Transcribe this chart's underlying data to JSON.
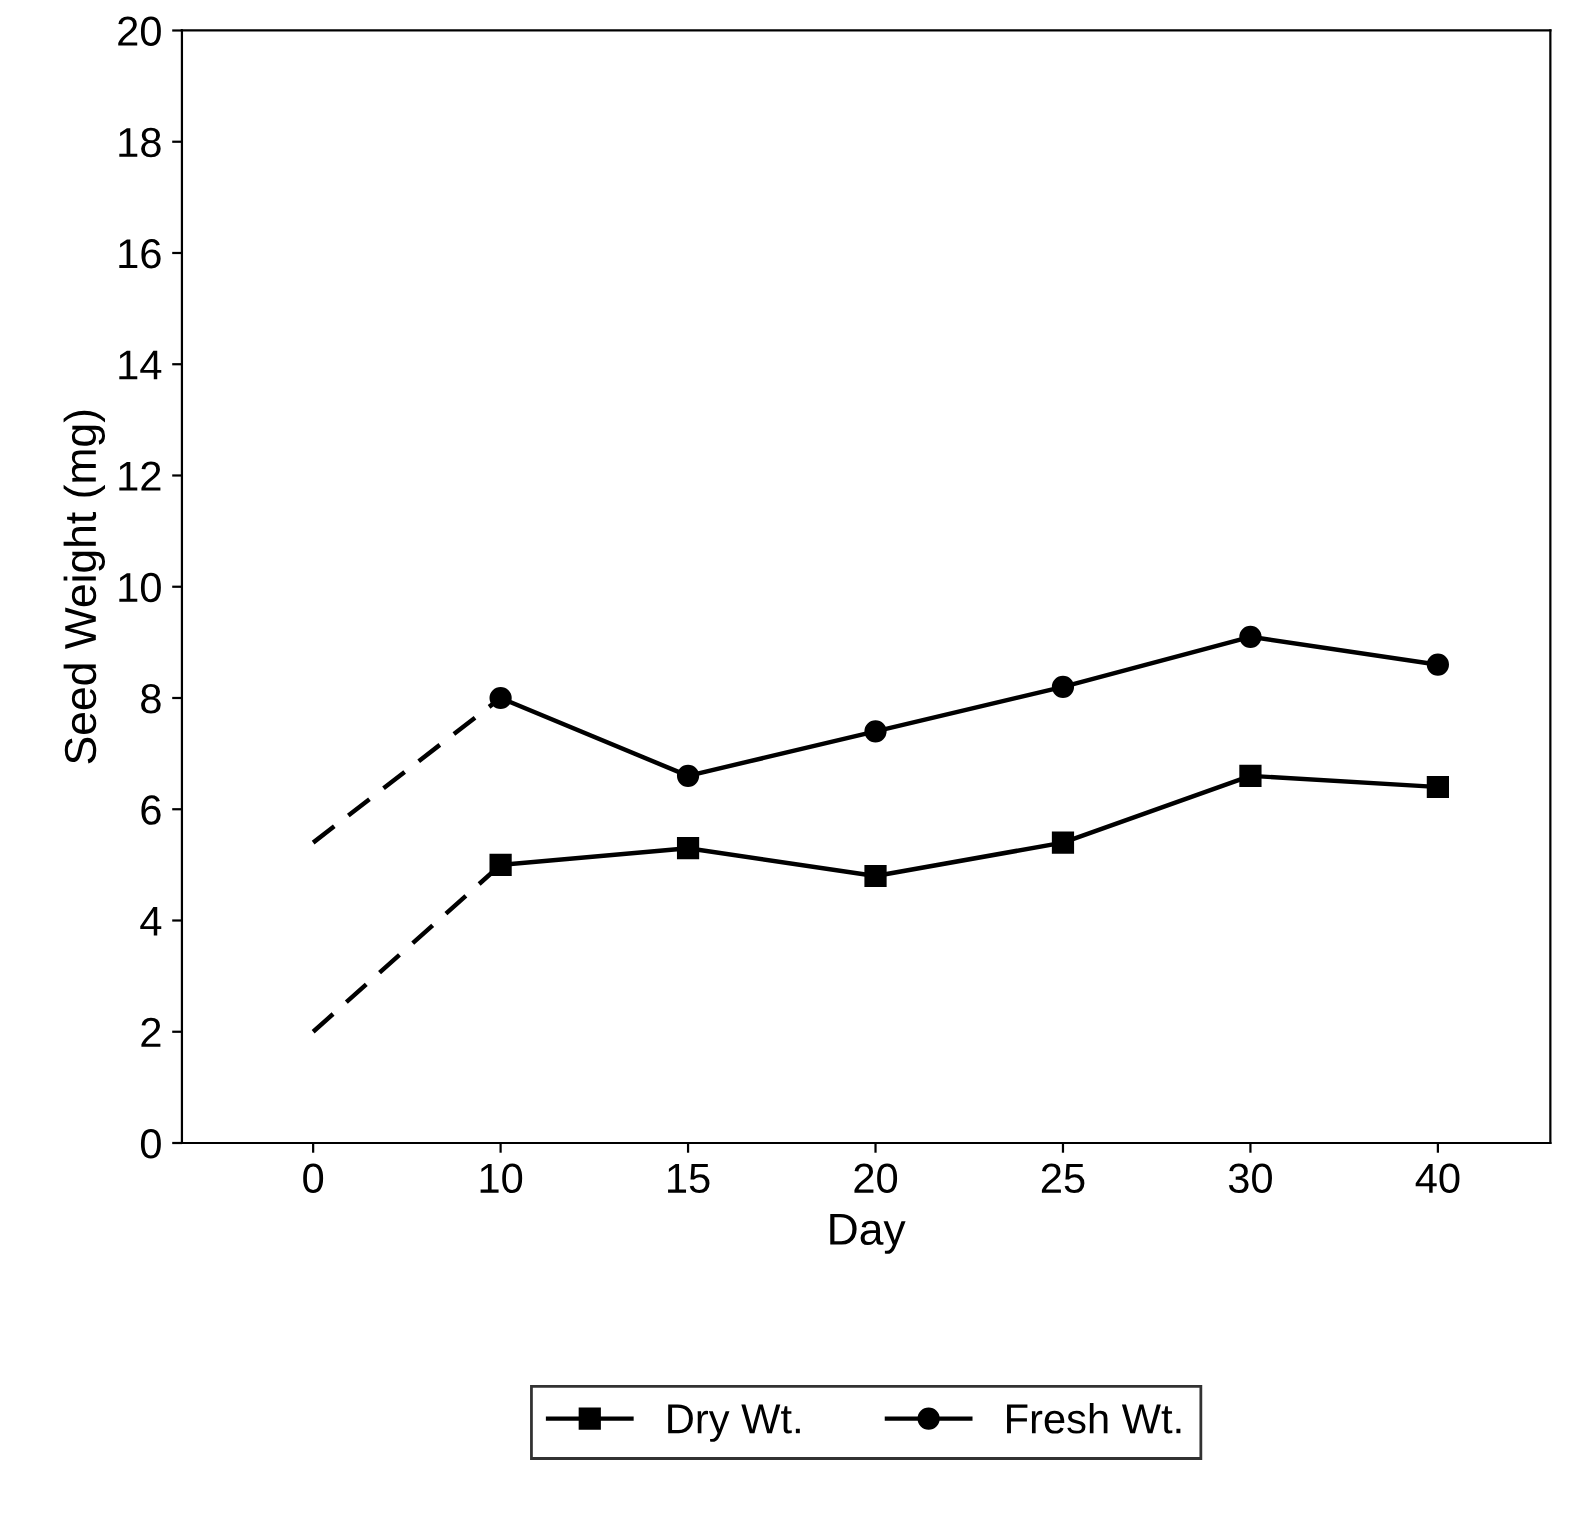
{
  "chart_data": {
    "type": "line",
    "xlabel": "Day",
    "ylabel": "Seed Weight (mg)",
    "categories": [
      "0",
      "10",
      "15",
      "20",
      "25",
      "30",
      "40"
    ],
    "series": [
      {
        "name": "Dry Wt.",
        "color": "#000000",
        "marker": "square",
        "line_style": "solid",
        "values": [
          null,
          5.0,
          5.3,
          4.8,
          5.4,
          6.6,
          6.4
        ]
      },
      {
        "name": "Fresh Wt.",
        "color": "#000000",
        "marker": "circle",
        "line_style": "solid",
        "values": [
          null,
          8.0,
          6.6,
          7.4,
          8.2,
          9.1,
          8.6
        ]
      },
      {
        "color": "#000000",
        "marker": "none",
        "line_style": "dashed",
        "values": [
          2.0,
          5.0,
          null,
          null,
          null,
          null,
          null
        ]
      },
      {
        "color": "#000000",
        "marker": "none",
        "line_style": "dashed",
        "values": [
          5.4,
          8.0,
          null,
          null,
          null,
          null,
          null
        ]
      }
    ],
    "ylim": [
      0,
      20
    ],
    "yticks": [
      0,
      2,
      4,
      6,
      8,
      10,
      12,
      14,
      16,
      18,
      20
    ],
    "grid": false,
    "legend": "bottom"
  }
}
